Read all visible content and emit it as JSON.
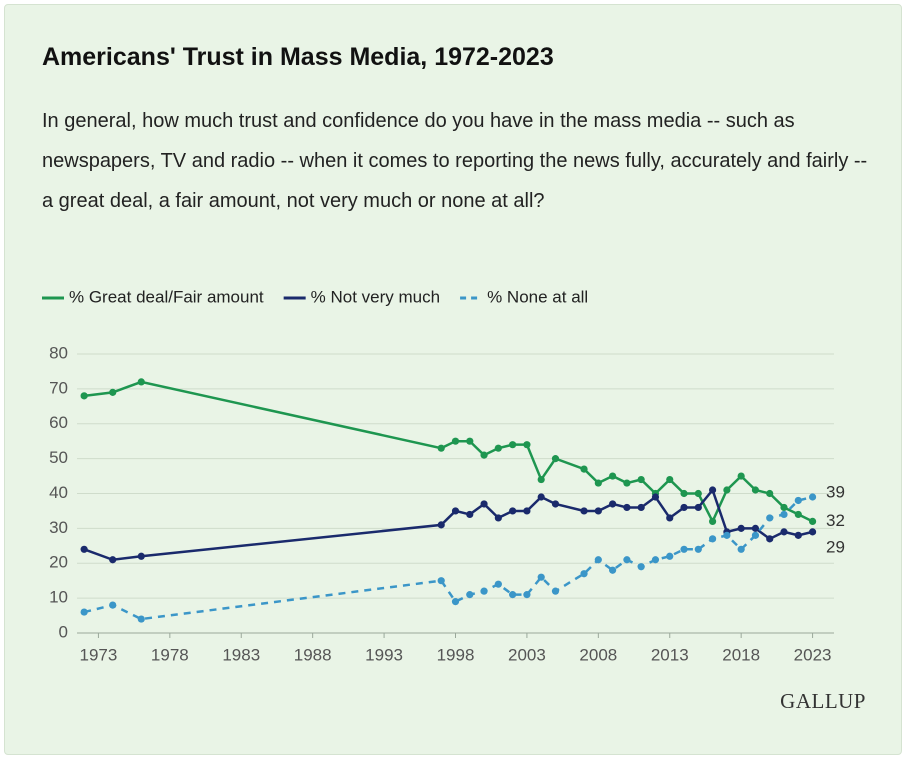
{
  "chart_data": {
    "type": "line",
    "title": "Americans' Trust in Mass Media, 1972-2023",
    "subtitle": "In general, how much trust and confidence do you have in the mass media -- such as newspapers, TV and radio -- when it comes to reporting the news fully, accurately and fairly -- a great deal, a fair amount, not very much or none at all?",
    "x": [
      1972,
      1974,
      1976,
      1997,
      1998,
      1999,
      2000,
      2001,
      2002,
      2003,
      2004,
      2005,
      2007,
      2008,
      2009,
      2010,
      2011,
      2012,
      2013,
      2014,
      2015,
      2016,
      2017,
      2018,
      2019,
      2020,
      2021,
      2022,
      2023
    ],
    "series": [
      {
        "name": "% Great deal/Fair amount",
        "color": "#1e9650",
        "line_style": "solid",
        "values": [
          68,
          69,
          72,
          53,
          55,
          55,
          51,
          53,
          54,
          54,
          44,
          50,
          47,
          43,
          45,
          43,
          44,
          40,
          44,
          40,
          40,
          32,
          41,
          45,
          41,
          40,
          36,
          34,
          32
        ]
      },
      {
        "name": "% Not very much",
        "color": "#1a2a6c",
        "line_style": "solid",
        "values": [
          24,
          21,
          22,
          31,
          35,
          34,
          37,
          33,
          35,
          35,
          39,
          37,
          35,
          35,
          37,
          36,
          36,
          39,
          33,
          36,
          36,
          41,
          29,
          30,
          30,
          27,
          29,
          28,
          29
        ]
      },
      {
        "name": "% None at all",
        "color": "#3b96c8",
        "line_style": "dashed",
        "values": [
          6,
          8,
          4,
          15,
          9,
          11,
          12,
          14,
          11,
          11,
          16,
          12,
          17,
          21,
          18,
          21,
          19,
          21,
          22,
          24,
          24,
          27,
          28,
          24,
          28,
          33,
          34,
          38,
          39
        ]
      }
    ],
    "xlim": [
      1971.5,
      2024.5
    ],
    "xticks": [
      1973,
      1978,
      1983,
      1988,
      1993,
      1998,
      2003,
      2008,
      2013,
      2018,
      2023
    ],
    "ylim": [
      0,
      80
    ],
    "yticks": [
      0,
      10,
      20,
      30,
      40,
      50,
      60,
      70,
      80
    ],
    "grid": true,
    "legend": "top-left",
    "source": "GALLUP"
  }
}
